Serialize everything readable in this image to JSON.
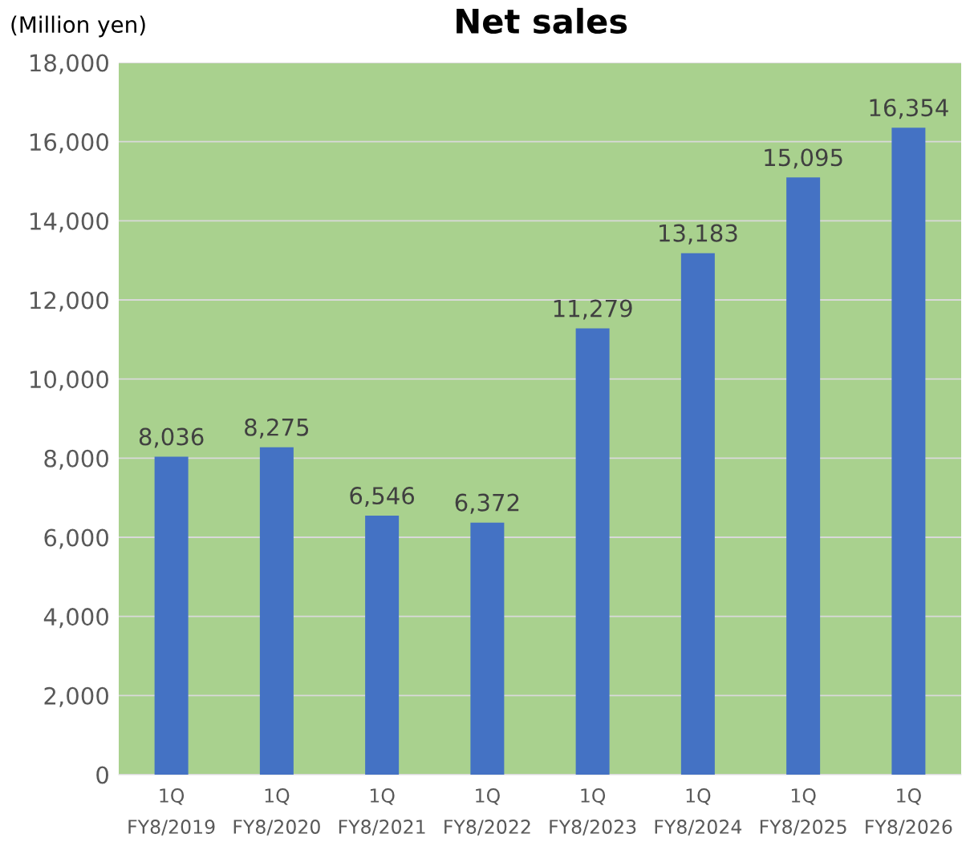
{
  "chart_data": {
    "type": "bar",
    "title": "Net sales",
    "ylabel": "(Million yen)",
    "categories": [
      "1Q\nFY8/2019",
      "1Q\nFY8/2020",
      "1Q\nFY8/2021",
      "1Q\nFY8/2022",
      "1Q\nFY8/2023",
      "1Q\nFY8/2024",
      "1Q\nFY8/2025",
      "1Q\nFY8/2026"
    ],
    "values": [
      8036,
      8275,
      6546,
      6372,
      11279,
      13183,
      15095,
      16354
    ],
    "value_labels": [
      "8,036",
      "8,275",
      "6,546",
      "6,372",
      "11,279",
      "13,183",
      "15,095",
      "16,354"
    ],
    "color": "#4472c4",
    "ylim": [
      0,
      18000
    ],
    "yticks": [
      0,
      {
        "value": 2000,
        "label": "2,000"
      },
      {
        "value": 4000,
        "label": "4,000"
      },
      {
        "value": 6000,
        "label": "6,000"
      },
      {
        "value": 8000,
        "label": "8,000"
      },
      {
        "value": 10000,
        "label": "10,000"
      },
      {
        "value": 12000,
        "label": "12,000"
      },
      {
        "value": 14000,
        "label": "14,000"
      },
      {
        "value": 16000,
        "label": "16,000"
      },
      {
        "value": 18000,
        "label": "18,000"
      }
    ],
    "grid": "y"
  }
}
